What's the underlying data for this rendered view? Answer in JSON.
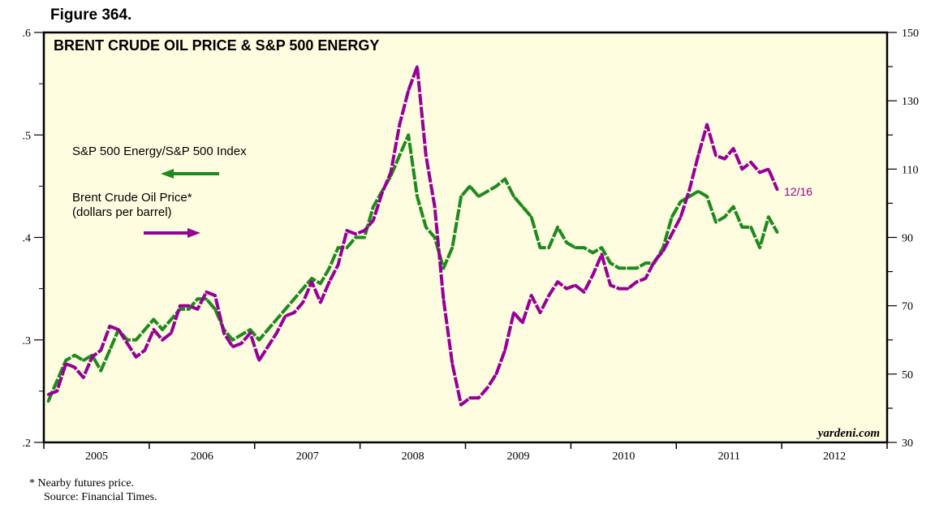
{
  "figure_label": "Figure 364.",
  "footnotes": [
    "*  Nearby futures price.",
    "Source: Financial Times."
  ],
  "chart_data": {
    "type": "line",
    "title": "BRENT CRUDE OIL PRICE & S&P 500 ENERGY",
    "watermark": "yardeni.com",
    "grid": false,
    "background_color": "#FFFDE0",
    "x_tick_labels": [
      "2005",
      "2006",
      "2007",
      "2008",
      "2009",
      "2010",
      "2011",
      "2012"
    ],
    "xlim": [
      "2005-01",
      "2012-12"
    ],
    "left_axis": {
      "ylim": [
        0.2,
        0.6
      ],
      "tick_labels": [
        ".2",
        ".3",
        ".4",
        ".5",
        ".6"
      ]
    },
    "right_axis": {
      "ylim": [
        30,
        150
      ],
      "tick_labels": [
        "30",
        "50",
        "70",
        "90",
        "110",
        "130",
        "150"
      ]
    },
    "legend": [
      {
        "text": "S&P 500 Energy/S&P 500 Index",
        "arrow": "left",
        "color": "#1E8A1E"
      },
      {
        "text": "Brent Crude Oil Price*",
        "text2": "(dollars per barrel)",
        "arrow": "right",
        "color": "#960096"
      }
    ],
    "end_annotation": "12/16",
    "x": [
      "2005-01",
      "2005-02",
      "2005-03",
      "2005-04",
      "2005-05",
      "2005-06",
      "2005-07",
      "2005-08",
      "2005-09",
      "2005-10",
      "2005-11",
      "2005-12",
      "2006-01",
      "2006-02",
      "2006-03",
      "2006-04",
      "2006-05",
      "2006-06",
      "2006-07",
      "2006-08",
      "2006-09",
      "2006-10",
      "2006-11",
      "2006-12",
      "2007-01",
      "2007-02",
      "2007-03",
      "2007-04",
      "2007-05",
      "2007-06",
      "2007-07",
      "2007-08",
      "2007-09",
      "2007-10",
      "2007-11",
      "2007-12",
      "2008-01",
      "2008-02",
      "2008-03",
      "2008-04",
      "2008-05",
      "2008-06",
      "2008-07",
      "2008-08",
      "2008-09",
      "2008-10",
      "2008-11",
      "2008-12",
      "2009-01",
      "2009-02",
      "2009-03",
      "2009-04",
      "2009-05",
      "2009-06",
      "2009-07",
      "2009-08",
      "2009-09",
      "2009-10",
      "2009-11",
      "2009-12",
      "2010-01",
      "2010-02",
      "2010-03",
      "2010-04",
      "2010-05",
      "2010-06",
      "2010-07",
      "2010-08",
      "2010-09",
      "2010-10",
      "2010-11",
      "2010-12",
      "2011-01",
      "2011-02",
      "2011-03",
      "2011-04",
      "2011-05",
      "2011-06",
      "2011-07",
      "2011-08",
      "2011-09",
      "2011-10",
      "2011-11",
      "2011-12"
    ],
    "series": [
      {
        "name": "S&P 500 Energy/S&P 500 Index",
        "axis": "left",
        "color": "#1E8A1E",
        "values": [
          0.24,
          0.26,
          0.28,
          0.285,
          0.28,
          0.285,
          0.27,
          0.29,
          0.31,
          0.3,
          0.3,
          0.31,
          0.32,
          0.31,
          0.32,
          0.33,
          0.33,
          0.34,
          0.34,
          0.33,
          0.31,
          0.3,
          0.305,
          0.31,
          0.3,
          0.31,
          0.32,
          0.33,
          0.34,
          0.35,
          0.36,
          0.355,
          0.37,
          0.39,
          0.39,
          0.4,
          0.4,
          0.43,
          0.445,
          0.46,
          0.48,
          0.5,
          0.44,
          0.41,
          0.4,
          0.37,
          0.39,
          0.44,
          0.45,
          0.44,
          0.445,
          0.45,
          0.457,
          0.44,
          0.43,
          0.42,
          0.39,
          0.39,
          0.41,
          0.395,
          0.39,
          0.39,
          0.385,
          0.39,
          0.375,
          0.37,
          0.37,
          0.37,
          0.375,
          0.375,
          0.39,
          0.42,
          0.435,
          0.44,
          0.445,
          0.44,
          0.415,
          0.42,
          0.43,
          0.41,
          0.41,
          0.39,
          0.42,
          0.405
        ]
      },
      {
        "name": "Brent Crude Oil Price*",
        "axis": "right",
        "color": "#960096",
        "values": [
          44,
          45,
          53,
          52,
          49,
          55,
          57,
          64,
          63,
          59,
          55,
          57,
          63,
          60,
          62,
          70,
          70,
          69,
          74,
          73,
          62,
          58,
          59,
          62,
          54,
          58,
          62,
          67,
          68,
          71,
          77,
          71,
          77,
          82,
          92,
          91,
          92,
          95,
          103,
          109,
          123,
          133,
          140,
          114,
          99,
          72,
          53,
          41,
          43,
          43,
          46,
          50,
          57,
          68,
          65,
          73,
          68,
          73,
          77,
          75,
          76,
          74,
          79,
          85,
          76,
          75,
          75,
          77,
          78,
          83,
          86,
          91,
          96,
          104,
          114,
          123,
          114,
          113,
          116,
          110,
          112,
          109,
          110,
          104
        ]
      }
    ]
  }
}
